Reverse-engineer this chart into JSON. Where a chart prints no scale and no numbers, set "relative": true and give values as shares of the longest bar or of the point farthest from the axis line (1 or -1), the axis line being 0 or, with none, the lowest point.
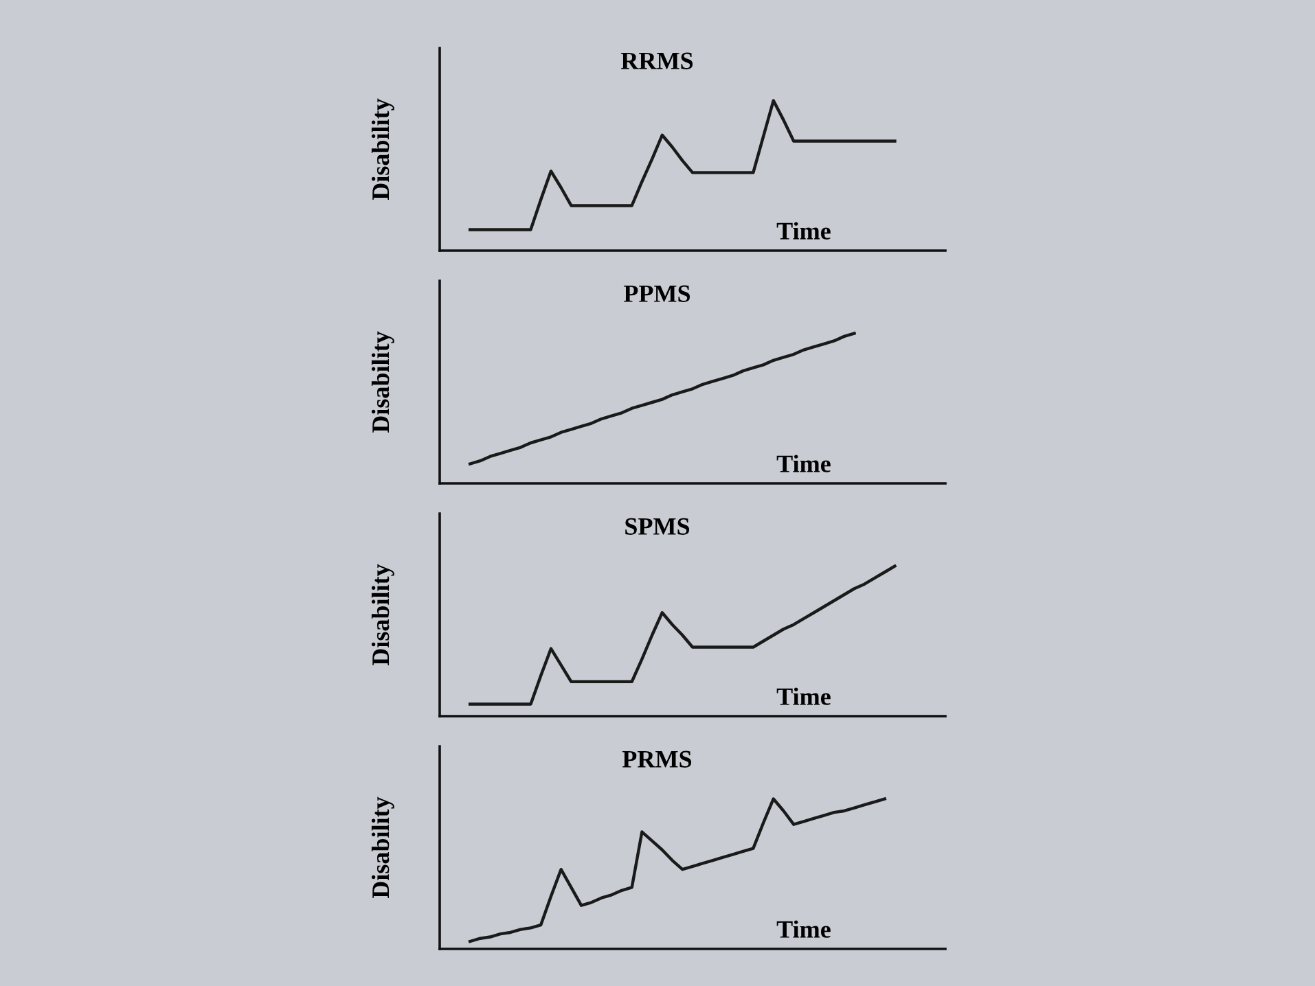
{
  "chart_data": [
    {
      "type": "line",
      "title": "RRMS",
      "xlabel": "Time",
      "ylabel": "Disability",
      "relative": true,
      "marker": "none",
      "line_style": "solid",
      "categories": [
        null,
        null,
        null,
        null,
        null,
        null,
        null,
        null,
        null,
        null,
        null,
        null,
        null,
        null,
        null,
        null,
        null,
        null,
        null,
        null,
        null,
        null,
        null,
        null,
        null,
        null,
        null,
        null,
        null,
        null,
        null,
        null,
        null,
        null,
        null,
        null,
        null,
        null,
        null,
        null,
        null,
        null,
        null
      ],
      "series": [
        {
          "color": "#1a1a1a",
          "values": [
            0.14,
            0.14,
            0.14,
            0.14,
            0.14,
            0.14,
            0.14,
            0.34,
            0.53,
            0.42,
            0.3,
            0.3,
            0.3,
            0.3,
            0.3,
            0.3,
            0.3,
            0.46,
            0.61,
            0.77,
            0.69,
            0.6,
            0.52,
            0.52,
            0.52,
            0.52,
            0.52,
            0.52,
            0.52,
            0.76,
            1,
            0.87,
            0.73,
            0.73,
            0.73,
            0.73,
            0.73,
            0.73,
            0.73,
            0.73,
            0.73,
            0.73,
            0.73
          ]
        }
      ]
    },
    {
      "type": "line",
      "title": "PPMS",
      "xlabel": "Time",
      "ylabel": "Disability",
      "relative": true,
      "marker": "none",
      "line_style": "solid",
      "categories": [
        null,
        null,
        null,
        null,
        null,
        null,
        null,
        null,
        null,
        null,
        null,
        null,
        null,
        null,
        null,
        null,
        null,
        null,
        null,
        null,
        null,
        null,
        null,
        null,
        null,
        null,
        null,
        null,
        null,
        null,
        null,
        null,
        null,
        null,
        null,
        null,
        null,
        null,
        null
      ],
      "series": [
        {
          "color": "#1a1a1a",
          "values": [
            0.13,
            0.15,
            0.18,
            0.2,
            0.22,
            0.24,
            0.27,
            0.29,
            0.31,
            0.34,
            0.36,
            0.38,
            0.4,
            0.43,
            0.45,
            0.47,
            0.5,
            0.52,
            0.54,
            0.56,
            0.59,
            0.61,
            0.63,
            0.66,
            0.68,
            0.7,
            0.72,
            0.75,
            0.77,
            0.79,
            0.82,
            0.84,
            0.86,
            0.89,
            0.91,
            0.93,
            0.95,
            0.98,
            1
          ]
        }
      ]
    },
    {
      "type": "line",
      "title": "SPMS",
      "xlabel": "Time",
      "ylabel": "Disability",
      "relative": true,
      "marker": "none",
      "line_style": "solid",
      "categories": [
        null,
        null,
        null,
        null,
        null,
        null,
        null,
        null,
        null,
        null,
        null,
        null,
        null,
        null,
        null,
        null,
        null,
        null,
        null,
        null,
        null,
        null,
        null,
        null,
        null,
        null,
        null,
        null,
        null,
        null,
        null,
        null,
        null,
        null,
        null,
        null,
        null,
        null,
        null,
        null,
        null,
        null,
        null
      ],
      "series": [
        {
          "color": "#1a1a1a",
          "values": [
            0.08,
            0.08,
            0.08,
            0.08,
            0.08,
            0.08,
            0.08,
            0.27,
            0.45,
            0.34,
            0.23,
            0.23,
            0.23,
            0.23,
            0.23,
            0.23,
            0.23,
            0.38,
            0.54,
            0.69,
            0.61,
            0.54,
            0.46,
            0.46,
            0.46,
            0.46,
            0.46,
            0.46,
            0.46,
            0.5,
            0.54,
            0.58,
            0.61,
            0.65,
            0.69,
            0.73,
            0.77,
            0.81,
            0.85,
            0.88,
            0.92,
            0.96,
            1
          ]
        }
      ]
    },
    {
      "type": "line",
      "title": "PRMS",
      "xlabel": "Time",
      "ylabel": "Disability",
      "relative": true,
      "marker": "none",
      "line_style": "solid",
      "categories": [
        null,
        null,
        null,
        null,
        null,
        null,
        null,
        null,
        null,
        null,
        null,
        null,
        null,
        null,
        null,
        null,
        null,
        null,
        null,
        null,
        null,
        null,
        null,
        null,
        null,
        null,
        null,
        null,
        null,
        null,
        null,
        null,
        null,
        null,
        null,
        null,
        null,
        null,
        null,
        null,
        null,
        null
      ],
      "series": [
        {
          "color": "#1a1a1a",
          "values": [
            0.05,
            0.07,
            0.08,
            0.1,
            0.11,
            0.13,
            0.14,
            0.16,
            0.35,
            0.53,
            0.41,
            0.29,
            0.31,
            0.34,
            0.36,
            0.39,
            0.41,
            0.78,
            0.72,
            0.66,
            0.59,
            0.53,
            0.55,
            0.57,
            0.59,
            0.61,
            0.63,
            0.65,
            0.67,
            0.84,
            1,
            0.92,
            0.83,
            0.85,
            0.87,
            0.89,
            0.91,
            0.92,
            0.94,
            0.96,
            0.98,
            1
          ]
        }
      ]
    }
  ]
}
